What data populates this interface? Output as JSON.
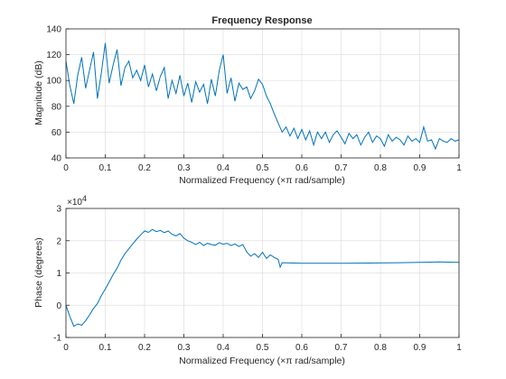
{
  "figure": {
    "background": "#ffffff",
    "line_color": "#0072bd"
  },
  "chart_data": [
    {
      "type": "line",
      "title": "Frequency Response",
      "xlabel": "Normalized Frequency  (×π rad/sample)",
      "ylabel": "Magnitude (dB)",
      "xlim": [
        0,
        1
      ],
      "ylim": [
        40,
        140
      ],
      "xticks": [
        0,
        0.1,
        0.2,
        0.3,
        0.4,
        0.5,
        0.6,
        0.7,
        0.8,
        0.9,
        1
      ],
      "yticks": [
        40,
        60,
        80,
        100,
        120,
        140
      ],
      "xtick_labels": [
        "0",
        "0.1",
        "0.2",
        "0.3",
        "0.4",
        "0.5",
        "0.6",
        "0.7",
        "0.8",
        "0.9",
        "1"
      ],
      "ytick_labels": [
        "40",
        "60",
        "80",
        "100",
        "120",
        "140"
      ],
      "grid": true,
      "series": [
        {
          "x": [
            0,
            0.01,
            0.02,
            0.03,
            0.04,
            0.05,
            0.06,
            0.07,
            0.08,
            0.09,
            0.1,
            0.11,
            0.12,
            0.13,
            0.14,
            0.15,
            0.16,
            0.17,
            0.18,
            0.19,
            0.2,
            0.21,
            0.22,
            0.23,
            0.24,
            0.25,
            0.26,
            0.27,
            0.28,
            0.29,
            0.3,
            0.31,
            0.32,
            0.33,
            0.34,
            0.35,
            0.36,
            0.37,
            0.38,
            0.39,
            0.4,
            0.41,
            0.42,
            0.43,
            0.44,
            0.45,
            0.46,
            0.47,
            0.48,
            0.49,
            0.5,
            0.51,
            0.52,
            0.53,
            0.54,
            0.55,
            0.56,
            0.57,
            0.58,
            0.59,
            0.6,
            0.61,
            0.62,
            0.63,
            0.64,
            0.65,
            0.66,
            0.67,
            0.68,
            0.69,
            0.7,
            0.71,
            0.72,
            0.73,
            0.74,
            0.75,
            0.76,
            0.77,
            0.78,
            0.79,
            0.8,
            0.81,
            0.82,
            0.83,
            0.84,
            0.85,
            0.86,
            0.87,
            0.88,
            0.89,
            0.9,
            0.91,
            0.92,
            0.93,
            0.94,
            0.95,
            0.96,
            0.97,
            0.98,
            0.99,
            1
          ],
          "y": [
            115,
            96,
            82,
            104,
            118,
            94,
            108,
            122,
            86,
            106,
            129,
            98,
            112,
            124,
            96,
            110,
            115,
            102,
            108,
            100,
            112,
            95,
            105,
            92,
            103,
            110,
            86,
            100,
            90,
            104,
            88,
            98,
            83,
            99,
            91,
            97,
            82,
            101,
            88,
            108,
            120,
            90,
            102,
            84,
            98,
            93,
            95,
            86,
            92,
            101,
            97,
            88,
            82,
            74,
            67,
            60,
            64,
            57,
            63,
            55,
            62,
            54,
            61,
            50,
            60,
            55,
            60,
            52,
            58,
            61,
            56,
            51,
            59,
            55,
            58,
            50,
            56,
            60,
            52,
            57,
            55,
            49,
            58,
            53,
            56,
            54,
            50,
            57,
            53,
            55,
            52,
            64,
            53,
            54,
            47,
            55,
            53,
            52,
            55,
            53,
            54
          ]
        }
      ]
    },
    {
      "type": "line",
      "xlabel": "Normalized Frequency  (×π rad/sample)",
      "ylabel": "Phase (degrees)",
      "xlim": [
        0,
        1
      ],
      "ylim": [
        -10000,
        30000
      ],
      "exponent_label": "×10",
      "exponent_power": "4",
      "xticks": [
        0,
        0.1,
        0.2,
        0.3,
        0.4,
        0.5,
        0.6,
        0.7,
        0.8,
        0.9,
        1
      ],
      "yticks": [
        -10000,
        0,
        10000,
        20000,
        30000
      ],
      "xtick_labels": [
        "0",
        "0.1",
        "0.2",
        "0.3",
        "0.4",
        "0.5",
        "0.6",
        "0.7",
        "0.8",
        "0.9",
        "1"
      ],
      "ytick_labels": [
        "-1",
        "0",
        "1",
        "2",
        "3"
      ],
      "grid": true,
      "series": [
        {
          "x": [
            0,
            0.01,
            0.02,
            0.03,
            0.04,
            0.05,
            0.06,
            0.07,
            0.08,
            0.09,
            0.1,
            0.11,
            0.12,
            0.13,
            0.14,
            0.15,
            0.16,
            0.17,
            0.18,
            0.19,
            0.2,
            0.21,
            0.22,
            0.23,
            0.24,
            0.25,
            0.26,
            0.27,
            0.28,
            0.29,
            0.3,
            0.31,
            0.32,
            0.33,
            0.34,
            0.35,
            0.36,
            0.37,
            0.38,
            0.39,
            0.4,
            0.41,
            0.42,
            0.43,
            0.44,
            0.45,
            0.46,
            0.47,
            0.48,
            0.49,
            0.5,
            0.51,
            0.52,
            0.53,
            0.54,
            0.545,
            0.55,
            0.6,
            0.7,
            0.8,
            0.85,
            0.9,
            0.95,
            1
          ],
          "y": [
            0,
            -3500,
            -6500,
            -5800,
            -6200,
            -4800,
            -3000,
            -1000,
            500,
            3000,
            5000,
            7200,
            9500,
            11500,
            14000,
            16000,
            17500,
            19000,
            20500,
            21800,
            23000,
            22600,
            23500,
            22800,
            23200,
            22500,
            23000,
            22000,
            21500,
            22200,
            20800,
            20000,
            19500,
            18800,
            19500,
            18500,
            19200,
            18800,
            18600,
            19400,
            18900,
            19200,
            18500,
            19000,
            18200,
            18800,
            16500,
            15200,
            16000,
            14800,
            16400,
            14500,
            15600,
            14800,
            14200,
            11800,
            13200,
            13000,
            13000,
            13100,
            13200,
            13300,
            13400,
            13300
          ]
        }
      ]
    }
  ]
}
